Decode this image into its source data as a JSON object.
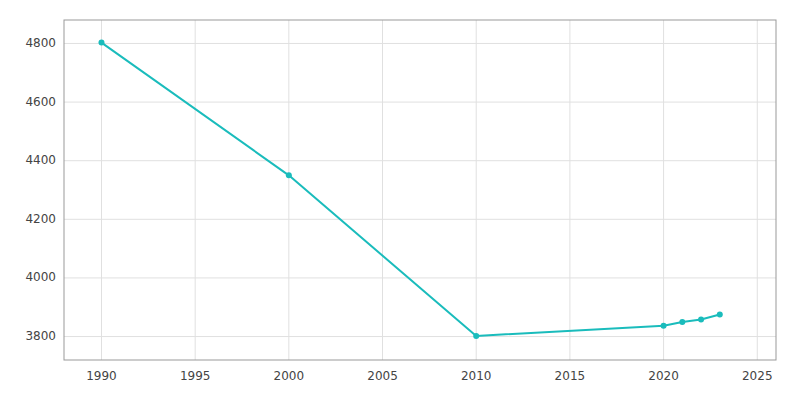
{
  "chart_data": {
    "type": "line",
    "x": [
      1990,
      2000,
      2010,
      2020,
      2021,
      2022,
      2023
    ],
    "values": [
      4803,
      4350,
      3802,
      3837,
      3850,
      3858,
      3875
    ],
    "color": "#1abcbc",
    "marker": "circle",
    "xlim": [
      1988,
      2026
    ],
    "ylim": [
      3720,
      4880
    ],
    "xticks": [
      1990,
      1995,
      2000,
      2005,
      2010,
      2015,
      2020,
      2025
    ],
    "yticks": [
      3800,
      4000,
      4200,
      4400,
      4600,
      4800
    ],
    "grid": true
  }
}
